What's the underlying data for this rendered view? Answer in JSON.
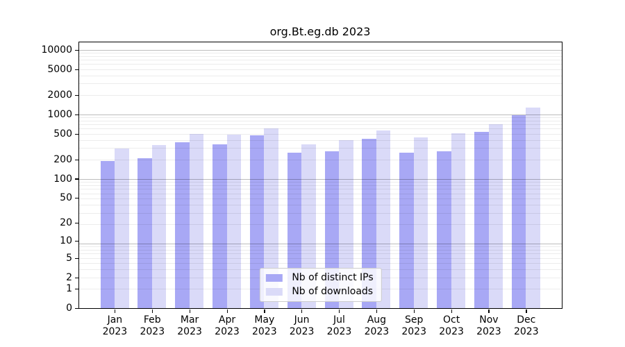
{
  "chart_data": {
    "type": "bar",
    "title": "org.Bt.eg.db 2023",
    "categories": [
      "Jan",
      "Feb",
      "Mar",
      "Apr",
      "May",
      "Jun",
      "Jul",
      "Aug",
      "Sep",
      "Oct",
      "Nov",
      "Dec"
    ],
    "x_label_second_line": "2023",
    "series": [
      {
        "name": "Nb of distinct IPs",
        "color": "#a8a8f5",
        "values": [
          190,
          210,
          365,
          340,
          475,
          255,
          265,
          420,
          255,
          270,
          530,
          970
        ]
      },
      {
        "name": "Nb of downloads",
        "color": "#dadaf8",
        "values": [
          295,
          330,
          500,
          485,
          610,
          340,
          395,
          565,
          440,
          505,
          700,
          1265
        ]
      }
    ],
    "y_scale": "log10(1+value)",
    "y_ticks": [
      0,
      1,
      2,
      5,
      10,
      20,
      50,
      100,
      200,
      500,
      1000,
      2000,
      5000,
      10000
    ],
    "y_axis_top_value": 13000,
    "grid": true,
    "legend_position": "bottom-center"
  }
}
